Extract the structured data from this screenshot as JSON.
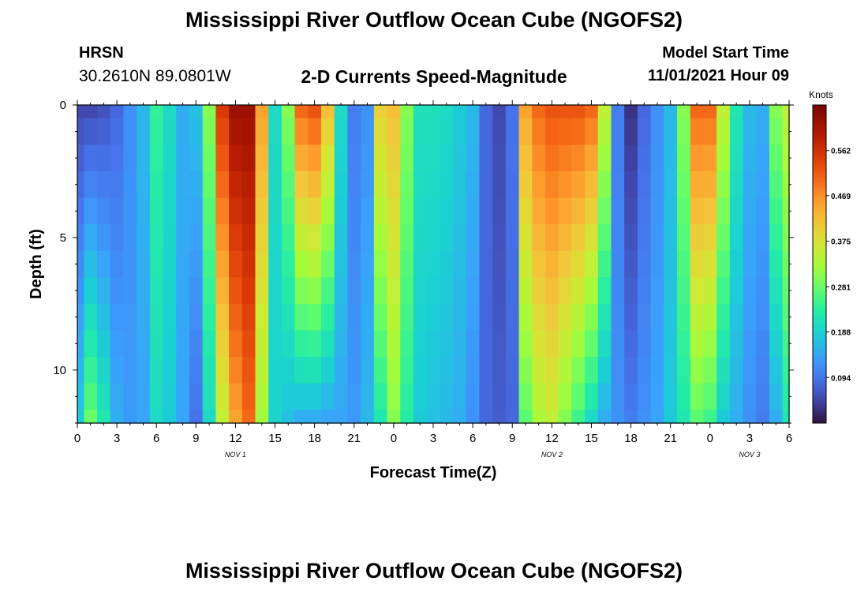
{
  "header": {
    "title": "Mississippi River Outflow Ocean Cube (NGOFS2)",
    "station_code": "HRSN",
    "station_coords": "30.2610N  89.0801W",
    "subtitle": "2-D Currents Speed-Magnitude",
    "model_start_label": "Model Start Time",
    "model_start_value": "11/01/2021 Hour 09"
  },
  "footer": {
    "title": "Mississippi River Outflow Ocean Cube (NGOFS2)"
  },
  "chart_data": {
    "type": "heatmap",
    "xlabel": "Forecast Time(Z)",
    "ylabel": "Depth (ft)",
    "xlim": [
      0,
      54
    ],
    "ylim": [
      12,
      0
    ],
    "x_ticks": [
      0,
      3,
      6,
      9,
      12,
      15,
      18,
      21,
      24,
      27,
      30,
      33,
      36,
      39,
      42,
      45,
      48,
      51,
      54
    ],
    "x_tick_labels": [
      "0",
      "3",
      "6",
      "9",
      "12",
      "15",
      "18",
      "21",
      "0",
      "3",
      "6",
      "9",
      "12",
      "15",
      "18",
      "21",
      "0",
      "3",
      "6"
    ],
    "y_ticks": [
      0,
      5,
      10
    ],
    "y_tick_labels": [
      "0",
      "5",
      "10"
    ],
    "date_labels": [
      {
        "x": 12,
        "text": "NOV 1"
      },
      {
        "x": 36,
        "text": "NOV 2"
      },
      {
        "x": 51,
        "text": "NOV 3"
      }
    ],
    "colorbar": {
      "label": "Knots",
      "min": 0,
      "max": 0.656,
      "ticks": [
        0.094,
        0.188,
        0.281,
        0.375,
        0.469,
        0.562
      ],
      "tick_labels": [
        "0.094",
        "0.188",
        "0.281",
        "0.375",
        "0.469",
        "0.562"
      ]
    },
    "depth_levels": [
      0,
      1,
      2,
      3,
      4,
      5,
      6,
      7,
      8,
      9,
      10,
      11,
      12
    ],
    "time_profile": [
      {
        "t": 0,
        "surface": 0.05,
        "bottom": 0.18
      },
      {
        "t": 1,
        "surface": 0.05,
        "bottom": 0.28
      },
      {
        "t": 2,
        "surface": 0.06,
        "bottom": 0.22
      },
      {
        "t": 3,
        "surface": 0.08,
        "bottom": 0.15
      },
      {
        "t": 4,
        "surface": 0.12,
        "bottom": 0.13
      },
      {
        "t": 5,
        "surface": 0.16,
        "bottom": 0.14
      },
      {
        "t": 6,
        "surface": 0.24,
        "bottom": 0.2
      },
      {
        "t": 7,
        "surface": 0.2,
        "bottom": 0.18
      },
      {
        "t": 8,
        "surface": 0.15,
        "bottom": 0.14
      },
      {
        "t": 9,
        "surface": 0.17,
        "bottom": 0.09
      },
      {
        "t": 10,
        "surface": 0.3,
        "bottom": 0.2
      },
      {
        "t": 11,
        "surface": 0.55,
        "bottom": 0.35
      },
      {
        "t": 12,
        "surface": 0.62,
        "bottom": 0.45
      },
      {
        "t": 13,
        "surface": 0.62,
        "bottom": 0.5
      },
      {
        "t": 14,
        "surface": 0.45,
        "bottom": 0.32
      },
      {
        "t": 15,
        "surface": 0.2,
        "bottom": 0.19
      },
      {
        "t": 16,
        "surface": 0.3,
        "bottom": 0.17
      },
      {
        "t": 17,
        "surface": 0.5,
        "bottom": 0.15
      },
      {
        "t": 18,
        "surface": 0.52,
        "bottom": 0.15
      },
      {
        "t": 19,
        "surface": 0.42,
        "bottom": 0.14
      },
      {
        "t": 20,
        "surface": 0.2,
        "bottom": 0.14
      },
      {
        "t": 21,
        "surface": 0.1,
        "bottom": 0.13
      },
      {
        "t": 22,
        "surface": 0.12,
        "bottom": 0.16
      },
      {
        "t": 23,
        "surface": 0.4,
        "bottom": 0.22
      },
      {
        "t": 24,
        "surface": 0.42,
        "bottom": 0.3
      },
      {
        "t": 25,
        "surface": 0.3,
        "bottom": 0.23
      },
      {
        "t": 26,
        "surface": 0.21,
        "bottom": 0.18
      },
      {
        "t": 27,
        "surface": 0.21,
        "bottom": 0.17
      },
      {
        "t": 28,
        "surface": 0.2,
        "bottom": 0.16
      },
      {
        "t": 29,
        "surface": 0.18,
        "bottom": 0.15
      },
      {
        "t": 30,
        "surface": 0.16,
        "bottom": 0.12
      },
      {
        "t": 31,
        "surface": 0.08,
        "bottom": 0.08
      },
      {
        "t": 32,
        "surface": 0.05,
        "bottom": 0.07
      },
      {
        "t": 33,
        "surface": 0.09,
        "bottom": 0.08
      },
      {
        "t": 34,
        "surface": 0.45,
        "bottom": 0.27
      },
      {
        "t": 35,
        "surface": 0.5,
        "bottom": 0.33
      },
      {
        "t": 36,
        "surface": 0.52,
        "bottom": 0.35
      },
      {
        "t": 37,
        "surface": 0.52,
        "bottom": 0.3
      },
      {
        "t": 38,
        "surface": 0.52,
        "bottom": 0.25
      },
      {
        "t": 39,
        "surface": 0.5,
        "bottom": 0.2
      },
      {
        "t": 40,
        "surface": 0.35,
        "bottom": 0.15
      },
      {
        "t": 41,
        "surface": 0.1,
        "bottom": 0.12
      },
      {
        "t": 42,
        "surface": 0.03,
        "bottom": 0.1
      },
      {
        "t": 43,
        "surface": 0.08,
        "bottom": 0.12
      },
      {
        "t": 44,
        "surface": 0.12,
        "bottom": 0.14
      },
      {
        "t": 45,
        "surface": 0.16,
        "bottom": 0.18
      },
      {
        "t": 46,
        "surface": 0.3,
        "bottom": 0.22
      },
      {
        "t": 47,
        "surface": 0.5,
        "bottom": 0.27
      },
      {
        "t": 48,
        "surface": 0.5,
        "bottom": 0.25
      },
      {
        "t": 49,
        "surface": 0.35,
        "bottom": 0.18
      },
      {
        "t": 50,
        "surface": 0.22,
        "bottom": 0.15
      },
      {
        "t": 51,
        "surface": 0.16,
        "bottom": 0.12
      },
      {
        "t": 52,
        "surface": 0.15,
        "bottom": 0.1
      },
      {
        "t": 53,
        "surface": 0.3,
        "bottom": 0.15
      },
      {
        "t": 54,
        "surface": 0.35,
        "bottom": 0.22
      }
    ]
  }
}
